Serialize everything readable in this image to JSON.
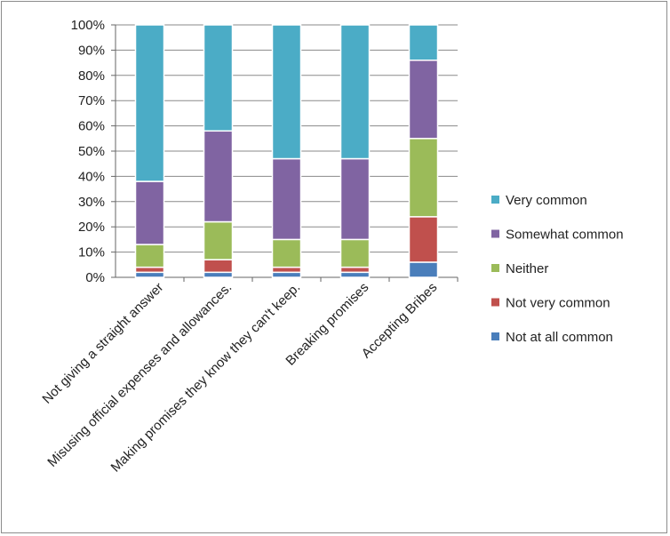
{
  "chart_data": {
    "type": "bar",
    "stacked": true,
    "categories": [
      "Not giving a straight answer",
      "Misusing official expenses and allowances.",
      "Making promises they know they can't keep.",
      "Breaking promises",
      "Accepting Bribes"
    ],
    "series": [
      {
        "name": "Not at all common",
        "color": "#4a7ebb",
        "values": [
          2,
          2,
          2,
          2,
          6
        ]
      },
      {
        "name": "Not very common",
        "color": "#c0504d",
        "values": [
          2,
          5,
          2,
          2,
          18
        ]
      },
      {
        "name": "Neither",
        "color": "#9bbb59",
        "values": [
          9,
          15,
          11,
          11,
          31
        ]
      },
      {
        "name": "Somewhat common",
        "color": "#8064a2",
        "values": [
          25,
          36,
          32,
          32,
          31
        ]
      },
      {
        "name": "Very common",
        "color": "#4bacc6",
        "values": [
          62,
          42,
          53,
          53,
          14
        ]
      }
    ],
    "ylim": [
      0,
      100
    ],
    "yticks": [
      "0%",
      "10%",
      "20%",
      "30%",
      "40%",
      "50%",
      "60%",
      "70%",
      "80%",
      "90%",
      "100%"
    ],
    "grid": true,
    "legend_position": "right"
  }
}
